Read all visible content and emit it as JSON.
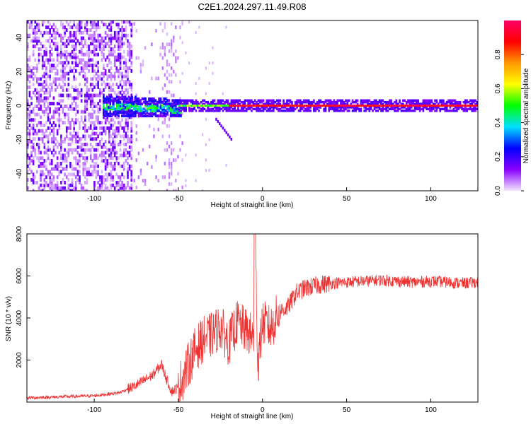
{
  "chart_data": [
    {
      "type": "heatmap",
      "title": "C2E1.2024.297.11.49.R08",
      "xlabel": "Height of straight line (km)",
      "ylabel": "Frequency (Hz)",
      "xlim": [
        -140,
        128
      ],
      "ylim": [
        -50,
        50
      ],
      "xticks": [
        -100,
        -50,
        0,
        50,
        100
      ],
      "yticks": [
        -40,
        -20,
        0,
        20,
        40
      ],
      "colorbar": {
        "label": "Normalized spectral amplitude",
        "range": [
          0,
          1
        ],
        "ticks": [
          0.0,
          0.2,
          0.4,
          0.6,
          0.8
        ],
        "colors": [
          "#f2e6ff",
          "#8a00ff",
          "#0000ff",
          "#00e0ff",
          "#00ff00",
          "#ffff00",
          "#ff9900",
          "#ff0000",
          "#ff0066"
        ]
      },
      "features": [
        {
          "x_range": [
            -140,
            -80
          ],
          "freq_range": [
            -50,
            50
          ],
          "amplitude": 0.1,
          "note": "scattered noise"
        },
        {
          "x_range": [
            -95,
            -50
          ],
          "freq_range": [
            -5,
            5
          ],
          "amplitude": 0.4
        },
        {
          "x_range": [
            -50,
            128
          ],
          "freq_range": [
            -1,
            1
          ],
          "amplitude": 0.9
        }
      ],
      "grid": false
    },
    {
      "type": "line",
      "xlabel": "Height of straight line (km)",
      "ylabel": "SNR (10 * v/v)",
      "xlim": [
        -140,
        128
      ],
      "ylim": [
        0,
        8000
      ],
      "xticks": [
        -100,
        -50,
        0,
        50,
        100
      ],
      "yticks": [
        2000,
        4000,
        6000,
        8000
      ],
      "series": [
        {
          "color": "#ee3333",
          "x": [
            -140,
            -120,
            -100,
            -85,
            -75,
            -65,
            -60,
            -57,
            -54,
            -50,
            -45,
            -40,
            -35,
            -30,
            -25,
            -20,
            -15,
            -10,
            -7,
            -5,
            -4,
            -3,
            0,
            5,
            10,
            15,
            20,
            25,
            30,
            35,
            40,
            50,
            60,
            70,
            80,
            90,
            100,
            110,
            120,
            128
          ],
          "y": [
            200,
            250,
            300,
            450,
            800,
            1300,
            1800,
            1100,
            500,
            700,
            1600,
            2500,
            3000,
            3200,
            3600,
            2800,
            3800,
            3400,
            3200,
            3000,
            7900,
            1600,
            3800,
            3500,
            4300,
            4500,
            5200,
            5400,
            5500,
            5600,
            5650,
            5700,
            5750,
            5800,
            5750,
            5700,
            5750,
            5700,
            5650,
            5700
          ]
        }
      ],
      "grid": false
    }
  ]
}
